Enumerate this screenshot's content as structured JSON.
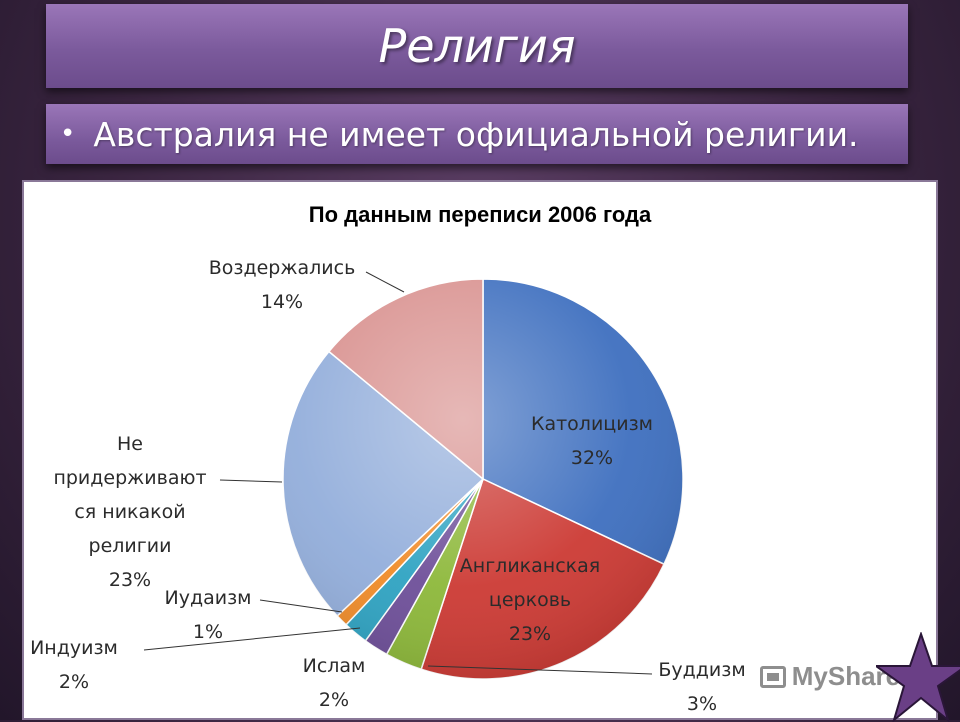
{
  "slide": {
    "title": "Религия",
    "bullet": "•",
    "subtitle": "Австралия не имеет официальной религии."
  },
  "watermark": {
    "text": "MyShared"
  },
  "chart_data": {
    "type": "pie",
    "title": "По данным переписи 2006 года",
    "slices": [
      {
        "label": "Католицизм",
        "percent_label": "32%",
        "value": 32,
        "color": "#3e6fbf"
      },
      {
        "label": "Англиканская церковь",
        "percent_label": "23%",
        "value": 23,
        "color": "#cc3a34"
      },
      {
        "label": "Буддизм",
        "percent_label": "3%",
        "value": 3,
        "color": "#8db83a"
      },
      {
        "label": "Ислам",
        "percent_label": "2%",
        "value": 2,
        "color": "#6e4f99"
      },
      {
        "label": "Индуизм",
        "percent_label": "2%",
        "value": 2,
        "color": "#2fa3c2"
      },
      {
        "label": "Иудаизм",
        "percent_label": "1%",
        "value": 1,
        "color": "#f08c2a"
      },
      {
        "label": "Не придерживаются никакой религии",
        "percent_label": "23%",
        "value": 23,
        "color": "#93aedb"
      },
      {
        "label": "Воздержались",
        "percent_label": "14%",
        "value": 14,
        "color": "#d99290"
      }
    ],
    "start_angle_deg": 0,
    "direction": "clockwise"
  }
}
